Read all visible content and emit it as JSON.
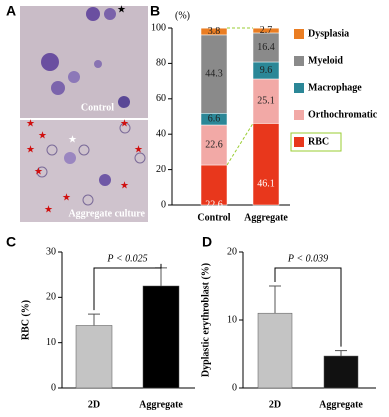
{
  "figure": {
    "panel_labels": [
      "A",
      "B",
      "C",
      "D"
    ],
    "image_labels": [
      "Control",
      "Aggregate culture"
    ]
  },
  "chart_data": [
    {
      "type": "stacked_bar",
      "y_label": "(%)",
      "categories": [
        "Control",
        "Aggregate"
      ],
      "ylim": [
        0,
        100
      ],
      "yticks": [
        0,
        20,
        40,
        60,
        80,
        100
      ],
      "series": [
        {
          "name": "RBC",
          "color": "#e8371c",
          "values": [
            22.6,
            46.1
          ]
        },
        {
          "name": "Orthochromatic",
          "color": "#f2a9a6",
          "values": [
            22.6,
            25.1
          ]
        },
        {
          "name": "Macrophage",
          "color": "#2b8797",
          "values": [
            6.6,
            9.6
          ]
        },
        {
          "name": "Myeloid",
          "color": "#8a8a8a",
          "values": [
            44.3,
            16.4
          ]
        },
        {
          "name": "Dysplasia",
          "color": "#ea7d22",
          "values": [
            3.8,
            2.7
          ]
        }
      ]
    },
    {
      "type": "bar",
      "y_label": "RBC (%)",
      "categories": [
        "2D",
        "Aggregate"
      ],
      "values": [
        13.8,
        22.5
      ],
      "errors": [
        2.5,
        4
      ],
      "colors": [
        "#c4c4c4",
        "#000000"
      ],
      "ylim": [
        0,
        30
      ],
      "yticks": [
        0,
        10,
        20,
        30
      ],
      "annotation": "P < 0.025"
    },
    {
      "type": "bar",
      "y_label": "Dyplastic erythroblast (%)",
      "categories": [
        "2D",
        "Aggregate"
      ],
      "values": [
        11,
        4.7
      ],
      "errors": [
        4,
        0.8
      ],
      "colors": [
        "#c4c4c4",
        "#111111"
      ],
      "ylim": [
        0,
        20
      ],
      "yticks": [
        0,
        10,
        20
      ],
      "annotation": "P < 0.039"
    }
  ]
}
